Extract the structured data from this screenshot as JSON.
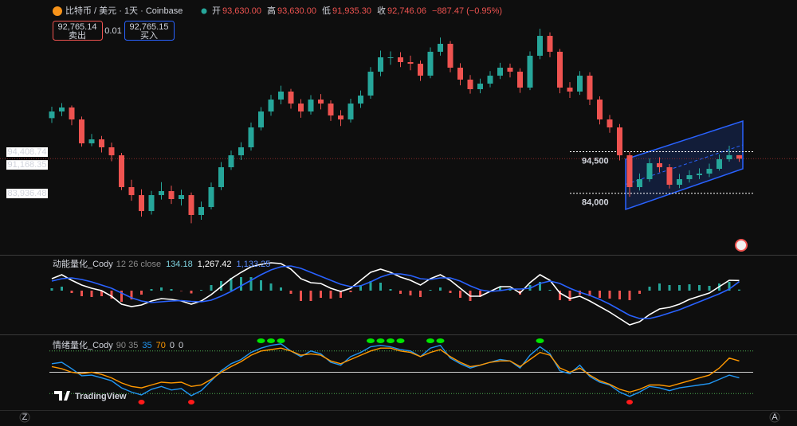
{
  "header": {
    "symbol": "比特币 / 美元 · 1天 · Coinbase",
    "ohlc": [
      {
        "key": "开",
        "value": "93,630.00"
      },
      {
        "key": "高",
        "value": "93,630.00"
      },
      {
        "key": "低",
        "value": "91,935.30"
      },
      {
        "key": "收",
        "value": "92,746.06"
      }
    ],
    "change": "−887.47 (−0.95%)",
    "sell": {
      "price": "92,765.14",
      "label": "卖出"
    },
    "spread": "0.01",
    "buy": {
      "price": "92,765.15",
      "label": "买入"
    }
  },
  "logo": "TradingView",
  "corners": [
    "Z",
    "A"
  ],
  "chart_data": [
    {
      "type": "candlestick",
      "ylim": [
        68430,
        132880
      ],
      "up_color": "#26a69a",
      "down_color": "#ef5350",
      "candles": [
        [
          103000,
          105900,
          101800,
          104680
        ],
        [
          104680,
          106800,
          103500,
          105690
        ],
        [
          105690,
          106200,
          101200,
          102670
        ],
        [
          102670,
          103400,
          95800,
          96620
        ],
        [
          96620,
          99000,
          95900,
          97630
        ],
        [
          97630,
          98500,
          94300,
          95620
        ],
        [
          95620,
          96800,
          92100,
          93600
        ],
        [
          93600,
          94200,
          84800,
          85550
        ],
        [
          85550,
          87400,
          82100,
          83530
        ],
        [
          83530,
          85000,
          78100,
          79500
        ],
        [
          79500,
          84600,
          78600,
          83530
        ],
        [
          83530,
          86800,
          82400,
          84540
        ],
        [
          84540,
          85900,
          81300,
          82530
        ],
        [
          82530,
          84900,
          80900,
          83530
        ],
        [
          83530,
          84200,
          76400,
          78500
        ],
        [
          78500,
          81900,
          77300,
          80510
        ],
        [
          80510,
          86700,
          79900,
          85550
        ],
        [
          85550,
          91900,
          84800,
          90580
        ],
        [
          90580,
          94800,
          89900,
          93600
        ],
        [
          93600,
          96900,
          92400,
          95620
        ],
        [
          95620,
          101900,
          94800,
          100650
        ],
        [
          100650,
          105800,
          99900,
          104680
        ],
        [
          104680,
          108900,
          103600,
          107700
        ],
        [
          107700,
          111200,
          106500,
          109720
        ],
        [
          109720,
          110400,
          105400,
          106690
        ],
        [
          106690,
          107800,
          103100,
          104680
        ],
        [
          104680,
          108800,
          103900,
          107700
        ],
        [
          107700,
          109100,
          105200,
          106690
        ],
        [
          106690,
          107500,
          102300,
          103670
        ],
        [
          103670,
          105000,
          101000,
          102670
        ],
        [
          102670,
          107900,
          101900,
          106690
        ],
        [
          106690,
          110000,
          105600,
          108710
        ],
        [
          108710,
          115900,
          107900,
          114750
        ],
        [
          114750,
          120100,
          113600,
          118380
        ],
        [
          118380,
          119900,
          116500,
          118380
        ],
        [
          118380,
          119700,
          115900,
          117170
        ],
        [
          117170,
          118800,
          115100,
          116760
        ],
        [
          116760,
          117600,
          112400,
          113740
        ],
        [
          113740,
          120900,
          113100,
          119790
        ],
        [
          119790,
          123400,
          118800,
          121800
        ],
        [
          121800,
          122500,
          114600,
          115760
        ],
        [
          115760,
          116900,
          111300,
          112740
        ],
        [
          112740,
          113900,
          109200,
          110320
        ],
        [
          110320,
          113000,
          109300,
          111730
        ],
        [
          111730,
          114900,
          110800,
          113740
        ],
        [
          113740,
          117000,
          112900,
          115760
        ],
        [
          115760,
          116800,
          113300,
          114750
        ],
        [
          114750,
          115600,
          109400,
          110720
        ],
        [
          110720,
          119900,
          110100,
          118780
        ],
        [
          118780,
          125600,
          117900,
          123810
        ],
        [
          123810,
          124700,
          118400,
          119790
        ],
        [
          119790,
          120500,
          109300,
          110720
        ],
        [
          110720,
          112100,
          108100,
          109720
        ],
        [
          109720,
          114900,
          108900,
          113740
        ],
        [
          113740,
          114600,
          106300,
          107700
        ],
        [
          107700,
          108500,
          101400,
          102670
        ],
        [
          102670,
          103800,
          99300,
          100650
        ],
        [
          100650,
          101500,
          92300,
          93600
        ],
        [
          93600,
          94400,
          83100,
          85550
        ],
        [
          85550,
          89000,
          84700,
          87560
        ],
        [
          87560,
          92800,
          86900,
          91590
        ],
        [
          91590,
          93100,
          89300,
          90580
        ],
        [
          90580,
          91400,
          85200,
          86150
        ],
        [
          86150,
          88900,
          85300,
          87560
        ],
        [
          87560,
          89800,
          86700,
          88570
        ],
        [
          88570,
          90300,
          87600,
          88970
        ],
        [
          88970,
          91500,
          88100,
          90180
        ],
        [
          90180,
          93800,
          89700,
          92600
        ],
        [
          92600,
          96020,
          92000,
          93630
        ],
        [
          93630,
          93630,
          91935.3,
          92746.06
        ]
      ],
      "price_labels": [
        {
          "value": 94408.74,
          "label": "94,408.74"
        },
        {
          "value": 91168.35,
          "label": "91,168.35"
        },
        {
          "value": 83936.48,
          "label": "83,936.48"
        }
      ],
      "level_lines": [
        {
          "value": 94500,
          "label": "94,500"
        },
        {
          "value": 84000,
          "label": "84,000"
        }
      ],
      "channel": {
        "color": "#2962ff",
        "upper": [
          92600,
          102260
        ],
        "lower": [
          79910,
          90180
        ]
      }
    },
    {
      "type": "macd",
      "title": "动能量化_Cody",
      "params": "12 26 close",
      "ylim": [
        -5500,
        4300
      ],
      "histogram": {
        "up_color": "#26a69a",
        "down_color": "#ef5350",
        "value_label": "134.18",
        "values": [
          300,
          500,
          -300,
          -700,
          -800,
          -700,
          -1000,
          -1400,
          -1100,
          -500,
          200,
          400,
          200,
          -50,
          -350,
          100,
          700,
          1200,
          1600,
          1700,
          1700,
          1300,
          900,
          400,
          -400,
          -1300,
          -1300,
          -900,
          -1000,
          -900,
          -200,
          700,
          1200,
          1000,
          200,
          -400,
          -600,
          -800,
          100,
          400,
          -300,
          -900,
          -1300,
          -800,
          0,
          500,
          300,
          -500,
          700,
          1100,
          100,
          -1200,
          -1300,
          -500,
          -700,
          -900,
          -1000,
          -1100,
          -1200,
          -400,
          500,
          900,
          700,
          700,
          800,
          700,
          600,
          900,
          1100,
          134.18
        ]
      },
      "series": [
        {
          "color": "#ffffff",
          "value_label": "1,267.42",
          "values": [
            1500,
            2000,
            1300,
            700,
            300,
            0,
            -700,
            -1700,
            -2000,
            -1800,
            -1300,
            -1000,
            -1100,
            -1300,
            -1700,
            -1300,
            -500,
            500,
            1500,
            2300,
            3000,
            3300,
            3500,
            3400,
            2700,
            1500,
            1000,
            900,
            300,
            -100,
            300,
            1300,
            2300,
            2700,
            2300,
            1700,
            1300,
            700,
            1500,
            2000,
            1300,
            300,
            -700,
            -700,
            -100,
            500,
            500,
            -300,
            1000,
            2000,
            1300,
            -300,
            -1000,
            -700,
            -1300,
            -2000,
            -2700,
            -3500,
            -4300,
            -3900,
            -3000,
            -2300,
            -2100,
            -1700,
            -1100,
            -700,
            -300,
            500,
            1300,
            1267.42
          ]
        },
        {
          "color": "#2962ff",
          "value_label": "1,133.25",
          "values": [
            1200,
            1500,
            1600,
            1400,
            1100,
            700,
            300,
            -300,
            -900,
            -1300,
            -1500,
            -1400,
            -1300,
            -1250,
            -1350,
            -1400,
            -1200,
            -700,
            -100,
            600,
            1300,
            2000,
            2600,
            3000,
            3100,
            2800,
            2300,
            1800,
            1300,
            800,
            500,
            600,
            1100,
            1700,
            2100,
            2100,
            1900,
            1500,
            1400,
            1600,
            1600,
            1200,
            600,
            100,
            -100,
            0,
            200,
            200,
            300,
            900,
            1200,
            900,
            300,
            -200,
            -600,
            -1100,
            -1700,
            -2400,
            -3100,
            -3500,
            -3500,
            -3200,
            -2800,
            -2400,
            -1900,
            -1400,
            -900,
            -400,
            200,
            1133.25
          ]
        }
      ]
    },
    {
      "type": "oscillator",
      "title": "情绪量化_Cody",
      "params": "90 35",
      "inputs": [
        "35",
        "70",
        "0",
        "0"
      ],
      "ylim": [
        0,
        100
      ],
      "levels": [
        80,
        50,
        20
      ],
      "level_color": "#4caf50",
      "high_color": "#00e600",
      "low_color": "#ff1a1a",
      "series": [
        {
          "color": "#2196f3",
          "values": [
            62,
            64,
            55,
            45,
            46,
            42,
            38,
            28,
            22,
            18,
            26,
            30,
            25,
            27,
            17,
            24,
            38,
            52,
            62,
            68,
            78,
            84,
            88,
            90,
            80,
            72,
            80,
            76,
            64,
            60,
            72,
            78,
            86,
            88,
            86,
            82,
            80,
            72,
            84,
            88,
            70,
            62,
            56,
            60,
            64,
            68,
            66,
            56,
            74,
            86,
            76,
            52,
            48,
            60,
            44,
            36,
            32,
            22,
            16,
            22,
            30,
            28,
            24,
            28,
            30,
            32,
            34,
            40,
            46,
            42
          ]
        },
        {
          "color": "#ff9800",
          "values": [
            58,
            55,
            50,
            48,
            50,
            47,
            42,
            35,
            30,
            28,
            32,
            36,
            35,
            36,
            30,
            32,
            40,
            50,
            58,
            65,
            74,
            80,
            82,
            84,
            80,
            74,
            76,
            74,
            66,
            62,
            68,
            74,
            80,
            84,
            84,
            80,
            78,
            72,
            78,
            82,
            72,
            64,
            58,
            60,
            64,
            66,
            66,
            58,
            68,
            78,
            74,
            56,
            50,
            56,
            46,
            38,
            33,
            26,
            22,
            26,
            32,
            32,
            30,
            34,
            38,
            42,
            46,
            56,
            70,
            66
          ]
        }
      ]
    }
  ]
}
